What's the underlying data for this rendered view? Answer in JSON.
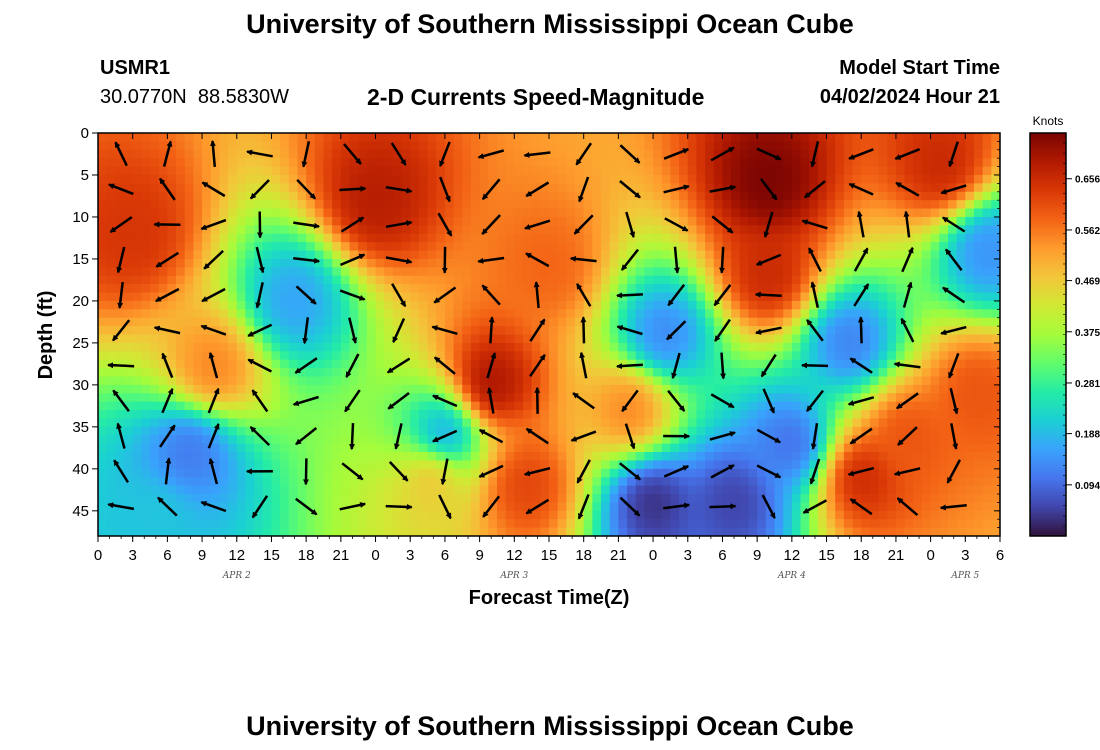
{
  "header": {
    "title": "University of Southern Mississippi Ocean Cube",
    "station_id": "USMR1",
    "coordinates": "30.0770N  88.5830W",
    "plot_title": "2-D Currents Speed-Magnitude",
    "model_start_label": "Model Start Time",
    "model_start_value": "04/02/2024 Hour 21"
  },
  "footer": {
    "title": "University of Southern Mississippi Ocean Cube"
  },
  "colors": {
    "palette": [
      "#30123b",
      "#4145ab",
      "#4675ed",
      "#39a2fc",
      "#1bcfd4",
      "#24eca6",
      "#61fc6c",
      "#a4fc3b",
      "#d1e834",
      "#f3c63a",
      "#fe9b2d",
      "#f36315",
      "#d93806",
      "#b11901",
      "#7a0402"
    ]
  },
  "chart_data": {
    "type": "heatmap",
    "xlabel": "Forecast Time(Z)",
    "ylabel": "Depth (ft)",
    "x_ticks": [
      "0",
      "3",
      "6",
      "9",
      "12",
      "15",
      "18",
      "21",
      "0",
      "3",
      "6",
      "9",
      "12",
      "15",
      "18",
      "21",
      "0",
      "3",
      "6",
      "9",
      "12",
      "15",
      "18",
      "21",
      "0",
      "3",
      "6"
    ],
    "x_range_hours": [
      0,
      78
    ],
    "date_labels": [
      {
        "label": "APR 2",
        "hour": 12
      },
      {
        "label": "APR 3",
        "hour": 36
      },
      {
        "label": "APR 4",
        "hour": 60
      },
      {
        "label": "APR 5",
        "hour": 75
      }
    ],
    "y_ticks": [
      0,
      5,
      10,
      15,
      20,
      25,
      30,
      35,
      40,
      45
    ],
    "ylim": [
      0,
      48
    ],
    "y_inverted": true,
    "colorbar": {
      "label": "Knots",
      "ticks": [
        "0.656",
        "0.562",
        "0.469",
        "0.375",
        "0.281",
        "0.188",
        "0.094"
      ],
      "range": [
        0,
        0.74
      ]
    },
    "speed_hotspots": [
      {
        "hour": 3,
        "depth": 12,
        "speed": 0.64
      },
      {
        "hour": 10,
        "depth": 28,
        "speed": 0.55
      },
      {
        "hour": 24,
        "depth": 8,
        "speed": 0.68
      },
      {
        "hour": 34,
        "depth": 30,
        "speed": 0.7
      },
      {
        "hour": 37,
        "depth": 42,
        "speed": 0.62
      },
      {
        "hour": 39,
        "depth": 16,
        "speed": 0.58
      },
      {
        "hour": 46,
        "depth": 33,
        "speed": 0.55
      },
      {
        "hour": 58,
        "depth": 6,
        "speed": 0.74
      },
      {
        "hour": 58,
        "depth": 17,
        "speed": 0.66
      },
      {
        "hour": 66,
        "depth": 41,
        "speed": 0.66
      },
      {
        "hour": 70,
        "depth": 36,
        "speed": 0.6
      },
      {
        "hour": 76,
        "depth": 31,
        "speed": 0.6
      },
      {
        "hour": 73,
        "depth": 4,
        "speed": 0.66
      },
      {
        "hour": 29,
        "depth": 41,
        "speed": 0.48
      }
    ],
    "speed_lows": [
      {
        "hour": 17,
        "depth": 20,
        "speed": 0.16
      },
      {
        "hour": 8,
        "depth": 38,
        "speed": 0.11
      },
      {
        "hour": 30,
        "depth": 36,
        "speed": 0.16
      },
      {
        "hour": 49,
        "depth": 24,
        "speed": 0.13
      },
      {
        "hour": 48,
        "depth": 44,
        "speed": 0.03
      },
      {
        "hour": 55,
        "depth": 44,
        "speed": 0.05
      },
      {
        "hour": 60,
        "depth": 37,
        "speed": 0.1
      },
      {
        "hour": 65,
        "depth": 25,
        "speed": 0.12
      },
      {
        "hour": 77,
        "depth": 14,
        "speed": 0.14
      },
      {
        "hour": 5,
        "depth": 46,
        "speed": 0.2
      }
    ]
  }
}
